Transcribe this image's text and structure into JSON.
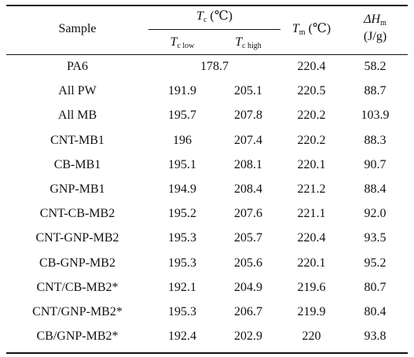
{
  "table": {
    "headers": {
      "sample": "Sample",
      "tc_group": {
        "symbol": "T",
        "sub": "c",
        "unit": " (℃)"
      },
      "tc_low": {
        "symbol": "T",
        "sub": "c low"
      },
      "tc_high": {
        "symbol": "T",
        "sub": "c high"
      },
      "tm": {
        "symbol": "T",
        "sub": "m",
        "unit": " (℃)"
      },
      "dh": {
        "symbol": "ΔH",
        "sub": "m",
        "unit": "(J/g)"
      }
    },
    "rows": [
      {
        "sample": "PA6",
        "tc_merged": "178.7",
        "tm": "220.4",
        "dh": "58.2"
      },
      {
        "sample": "All PW",
        "tc_low": "191.9",
        "tc_high": "205.1",
        "tm": "220.5",
        "dh": "88.7"
      },
      {
        "sample": "All MB",
        "tc_low": "195.7",
        "tc_high": "207.8",
        "tm": "220.2",
        "dh": "103.9"
      },
      {
        "sample": "CNT-MB1",
        "tc_low": "196",
        "tc_high": "207.4",
        "tm": "220.2",
        "dh": "88.3"
      },
      {
        "sample": "CB-MB1",
        "tc_low": "195.1",
        "tc_high": "208.1",
        "tm": "220.1",
        "dh": "90.7"
      },
      {
        "sample": "GNP-MB1",
        "tc_low": "194.9",
        "tc_high": "208.4",
        "tm": "221.2",
        "dh": "88.4"
      },
      {
        "sample": "CNT-CB-MB2",
        "tc_low": "195.2",
        "tc_high": "207.6",
        "tm": "221.1",
        "dh": "92.0"
      },
      {
        "sample": "CNT-GNP-MB2",
        "tc_low": "195.3",
        "tc_high": "205.7",
        "tm": "220.4",
        "dh": "93.5"
      },
      {
        "sample": "CB-GNP-MB2",
        "tc_low": "195.3",
        "tc_high": "205.6",
        "tm": "220.1",
        "dh": "95.2"
      },
      {
        "sample": "CNT/CB-MB2*",
        "tc_low": "192.1",
        "tc_high": "204.9",
        "tm": "219.6",
        "dh": "80.7"
      },
      {
        "sample": "CNT/GNP-MB2*",
        "tc_low": "195.3",
        "tc_high": "206.7",
        "tm": "219.9",
        "dh": "80.4"
      },
      {
        "sample": "CB/GNP-MB2*",
        "tc_low": "192.4",
        "tc_high": "202.9",
        "tm": "220",
        "dh": "93.8"
      }
    ]
  }
}
